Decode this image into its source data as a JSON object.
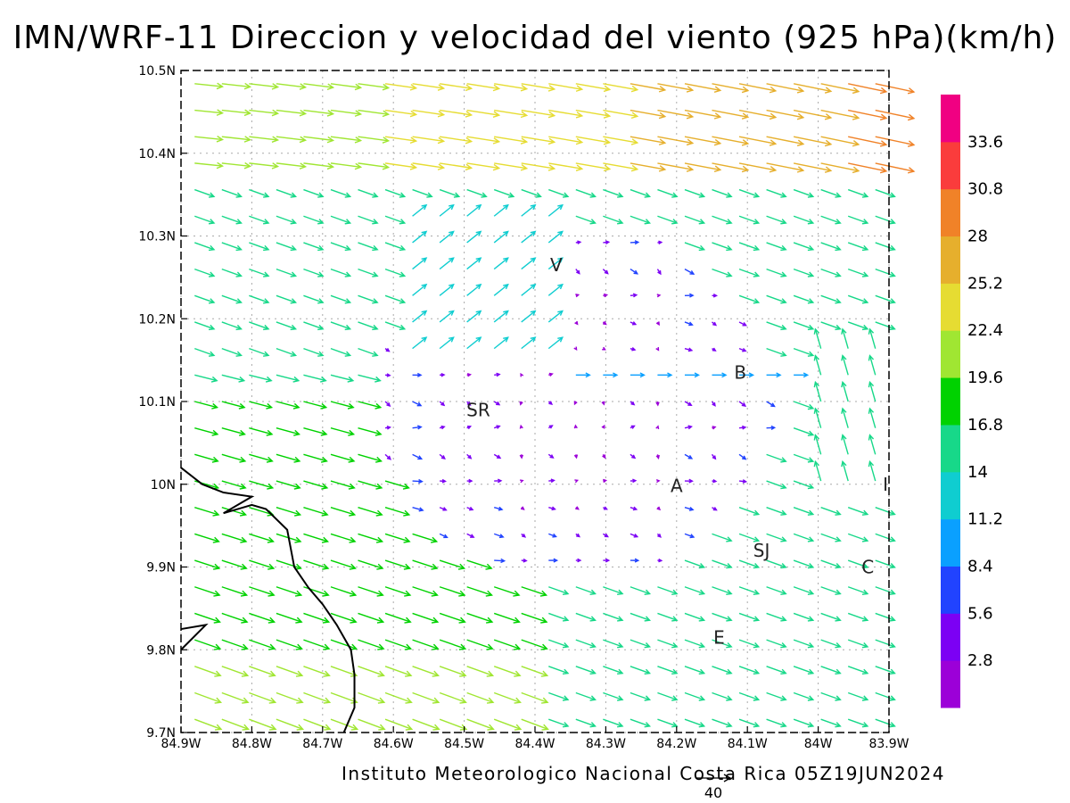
{
  "title": "IMN/WRF-11 Direccion y velocidad del viento (925 hPa)(km/h)",
  "credit": "Instituto Meteorologico Nacional Costa Rica 05Z19JUN2024",
  "map": {
    "lon_range": [
      -84.9,
      -83.9
    ],
    "lat_range": [
      9.7,
      10.5
    ],
    "grid": "dotted",
    "x_ticks": [
      {
        "value": -84.9,
        "label": "84.9W"
      },
      {
        "value": -84.8,
        "label": "84.8W"
      },
      {
        "value": -84.7,
        "label": "84.7W"
      },
      {
        "value": -84.6,
        "label": "84.6W"
      },
      {
        "value": -84.5,
        "label": "84.5W"
      },
      {
        "value": -84.4,
        "label": "84.4W"
      },
      {
        "value": -84.3,
        "label": "84.3W"
      },
      {
        "value": -84.2,
        "label": "84.2W"
      },
      {
        "value": -84.1,
        "label": "84.1W"
      },
      {
        "value": -84.0,
        "label": "84W"
      },
      {
        "value": -83.9,
        "label": "83.9W"
      }
    ],
    "y_ticks": [
      {
        "value": 9.7,
        "label": "9.7N"
      },
      {
        "value": 9.8,
        "label": "9.8N"
      },
      {
        "value": 9.9,
        "label": "9.9N"
      },
      {
        "value": 10.0,
        "label": "10N"
      },
      {
        "value": 10.1,
        "label": "10.1N"
      },
      {
        "value": 10.2,
        "label": "10.2N"
      },
      {
        "value": 10.3,
        "label": "10.3N"
      },
      {
        "value": 10.4,
        "label": "10.4N"
      },
      {
        "value": 10.5,
        "label": "10.5N"
      }
    ],
    "cities": [
      {
        "label": "V",
        "lon": -84.37,
        "lat": 10.265
      },
      {
        "label": "SR",
        "lon": -84.48,
        "lat": 10.09
      },
      {
        "label": "B",
        "lon": -84.11,
        "lat": 10.135
      },
      {
        "label": "A",
        "lon": -84.2,
        "lat": 9.998
      },
      {
        "label": "SJ",
        "lon": -84.08,
        "lat": 9.92
      },
      {
        "label": "C",
        "lon": -83.93,
        "lat": 9.9
      },
      {
        "label": "E",
        "lon": -84.14,
        "lat": 9.815
      },
      {
        "label": "I",
        "lon": -83.905,
        "lat": 10.0
      }
    ],
    "coastline": [
      [
        -84.9,
        10.02
      ],
      [
        -84.87,
        10.0
      ],
      [
        -84.84,
        9.99
      ],
      [
        -84.8,
        9.985
      ],
      [
        -84.84,
        9.965
      ],
      [
        -84.8,
        9.975
      ],
      [
        -84.78,
        9.97
      ],
      [
        -84.75,
        9.945
      ],
      [
        -84.74,
        9.9
      ],
      [
        -84.72,
        9.875
      ],
      [
        -84.7,
        9.855
      ],
      [
        -84.68,
        9.83
      ],
      [
        -84.66,
        9.8
      ],
      [
        -84.655,
        9.77
      ],
      [
        -84.655,
        9.73
      ],
      [
        -84.67,
        9.7
      ]
    ],
    "coastline2": [
      [
        -84.9,
        9.825
      ],
      [
        -84.865,
        9.83
      ],
      [
        -84.9,
        9.8
      ]
    ]
  },
  "reference_vector": {
    "label": "40",
    "value_kmh": 40
  },
  "colorbar": {
    "levels": [
      "2.8",
      "5.6",
      "8.4",
      "11.2",
      "14",
      "16.8",
      "19.6",
      "22.4",
      "25.2",
      "28",
      "30.8",
      "33.6"
    ],
    "colors": [
      "#9c00d8",
      "#7c00f4",
      "#2143ff",
      "#0aa0ff",
      "#0fcdd0",
      "#17d889",
      "#00d200",
      "#a0e632",
      "#e6dc32",
      "#e6af2d",
      "#f08228",
      "#fa3c3c",
      "#f00082"
    ]
  }
}
